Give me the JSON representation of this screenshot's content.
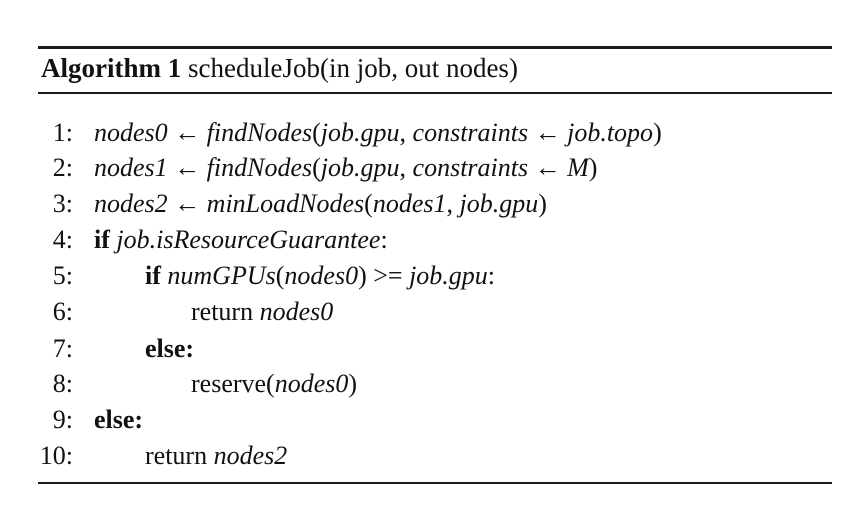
{
  "algorithm": {
    "label": "Algorithm 1",
    "signature": "scheduleJob(in job, out nodes)"
  },
  "lines": [
    {
      "num": "1:",
      "parts": [
        {
          "t": "nodes0",
          "s": "i"
        },
        {
          "t": " ← ",
          "s": "arr"
        },
        {
          "t": "findNodes",
          "s": "i"
        },
        {
          "t": "(",
          "s": ""
        },
        {
          "t": "job.gpu",
          "s": "i"
        },
        {
          "t": ", ",
          "s": ""
        },
        {
          "t": "constraints",
          "s": "i"
        },
        {
          "t": " ← ",
          "s": "arr"
        },
        {
          "t": "job.topo",
          "s": "i"
        },
        {
          "t": ")",
          "s": ""
        }
      ]
    },
    {
      "num": "2:",
      "parts": [
        {
          "t": "nodes1",
          "s": "i"
        },
        {
          "t": " ← ",
          "s": "arr"
        },
        {
          "t": "findNodes",
          "s": "i"
        },
        {
          "t": "(",
          "s": ""
        },
        {
          "t": "job.gpu",
          "s": "i"
        },
        {
          "t": ", ",
          "s": ""
        },
        {
          "t": "constraints",
          "s": "i"
        },
        {
          "t": " ← ",
          "s": "arr"
        },
        {
          "t": "M",
          "s": "i"
        },
        {
          "t": ")",
          "s": ""
        }
      ]
    },
    {
      "num": "3:",
      "parts": [
        {
          "t": "nodes2",
          "s": "i"
        },
        {
          "t": " ← ",
          "s": "arr"
        },
        {
          "t": "minLoadNodes",
          "s": "i"
        },
        {
          "t": "(",
          "s": ""
        },
        {
          "t": "nodes1",
          "s": "i"
        },
        {
          "t": ", ",
          "s": ""
        },
        {
          "t": "job.gpu",
          "s": "i"
        },
        {
          "t": ")",
          "s": ""
        }
      ]
    },
    {
      "num": "4:",
      "parts": [
        {
          "t": "if",
          "s": "b"
        },
        {
          "t": " ",
          "s": ""
        },
        {
          "t": "job.isResourceGuarantee",
          "s": "i"
        },
        {
          "t": ":",
          "s": ""
        }
      ]
    },
    {
      "num": "5:",
      "parts": [
        {
          "t": "if",
          "s": "b"
        },
        {
          "t": " ",
          "s": ""
        },
        {
          "t": "numGPUs",
          "s": "i"
        },
        {
          "t": "(",
          "s": ""
        },
        {
          "t": "nodes0",
          "s": "i"
        },
        {
          "t": ") >= ",
          "s": ""
        },
        {
          "t": "job.gpu",
          "s": "i"
        },
        {
          "t": ":",
          "s": ""
        }
      ]
    },
    {
      "num": "6:",
      "parts": [
        {
          "t": "return ",
          "s": ""
        },
        {
          "t": "nodes0",
          "s": "i"
        }
      ]
    },
    {
      "num": "7:",
      "parts": [
        {
          "t": "else:",
          "s": "b"
        }
      ]
    },
    {
      "num": "8:",
      "parts": [
        {
          "t": "reserve(",
          "s": ""
        },
        {
          "t": "nodes0",
          "s": "i"
        },
        {
          "t": ")",
          "s": ""
        }
      ]
    },
    {
      "num": "9:",
      "parts": [
        {
          "t": "else:",
          "s": "b"
        }
      ]
    },
    {
      "num": "10:",
      "parts": [
        {
          "t": "return ",
          "s": ""
        },
        {
          "t": "nodes2",
          "s": "i"
        }
      ]
    }
  ]
}
